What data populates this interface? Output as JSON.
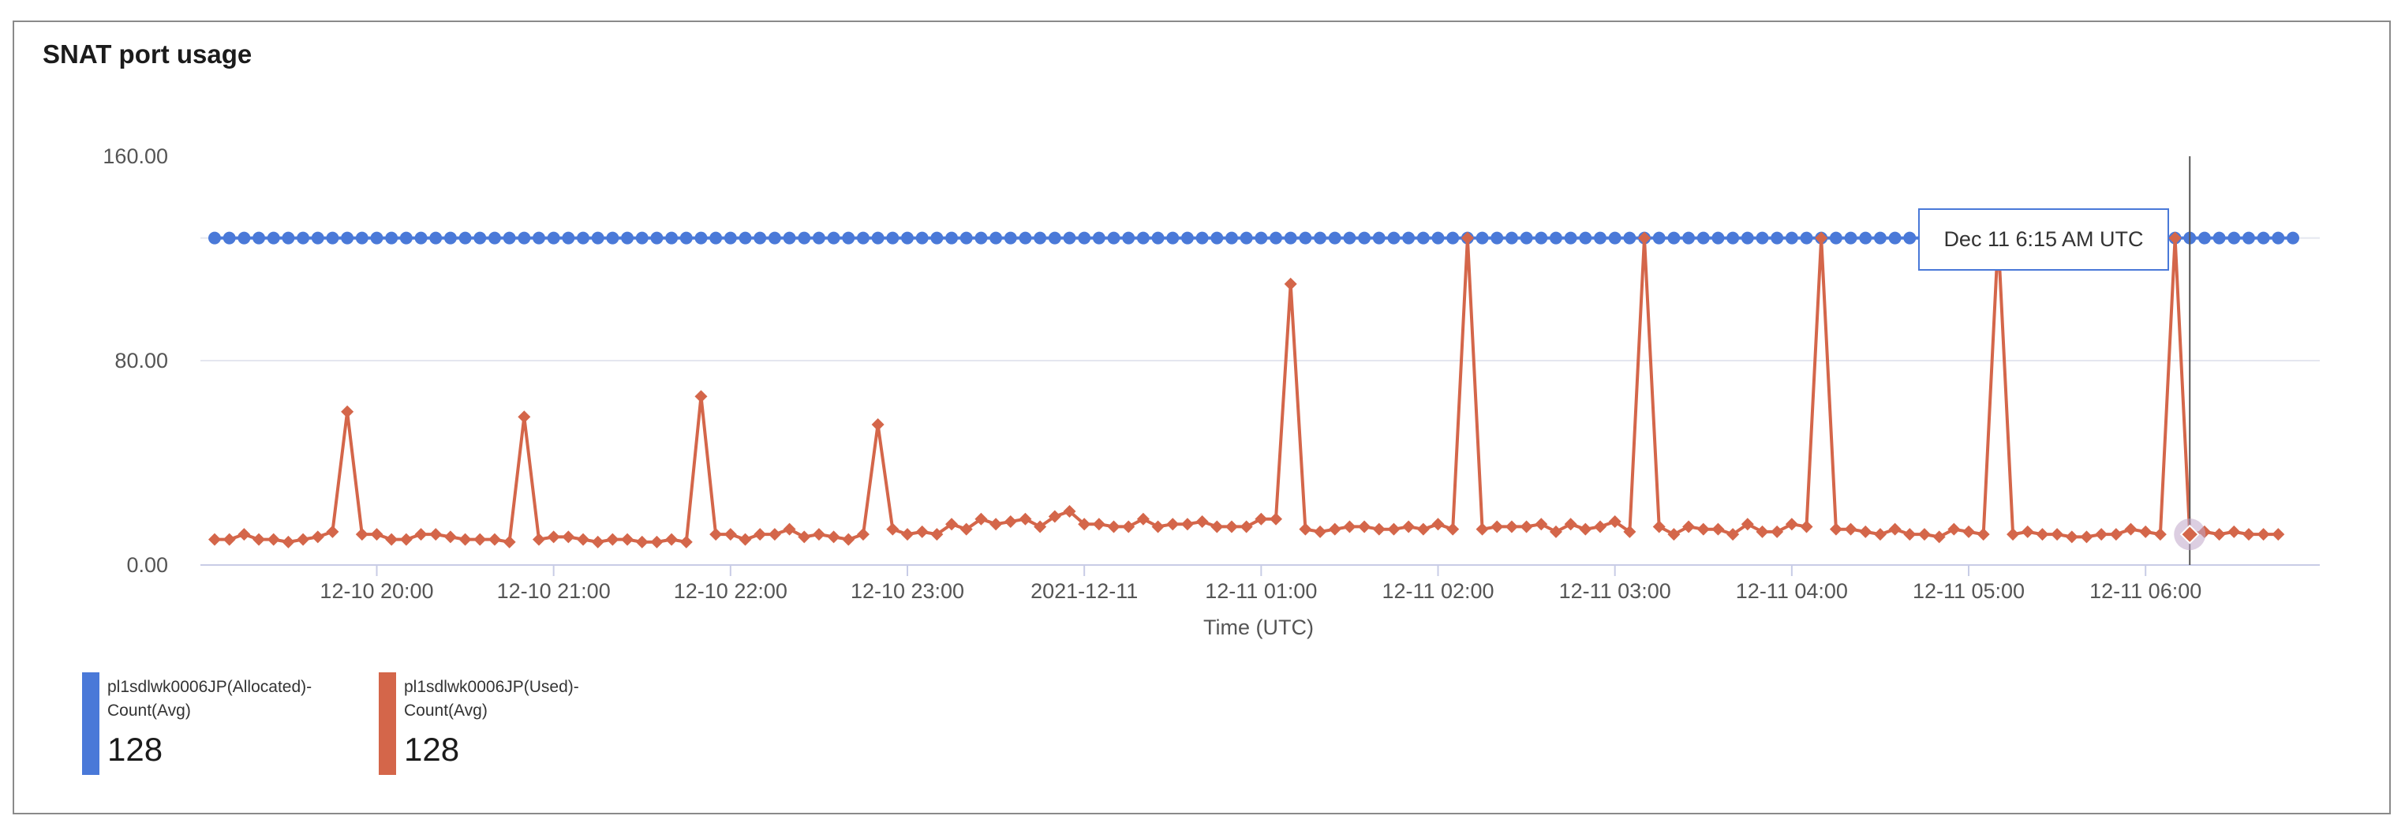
{
  "title": "SNAT port usage",
  "colors": {
    "allocated": "#4a79d8",
    "used": "#d4664a",
    "axis": "#c8cce6",
    "grid": "#e4e6ef",
    "text": "#555555"
  },
  "tooltip": {
    "text": "Dec 11 6:15 AM UTC"
  },
  "legend": [
    {
      "line1": "pl1sdlwk0006JP(Allocated)-",
      "line2": "Count(Avg)",
      "value": "128",
      "color": "#4a79d8"
    },
    {
      "line1": "pl1sdlwk0006JP(Used)-",
      "line2": "Count(Avg)",
      "value": "128",
      "color": "#d4664a"
    }
  ],
  "chart_data": {
    "type": "line",
    "title": "SNAT port usage",
    "xlabel": "Time (UTC)",
    "ylabel": "",
    "ylim": [
      0,
      160
    ],
    "yticks": [
      "0.00",
      "80.00",
      "160.00"
    ],
    "xticks": [
      "12-10 20:00",
      "12-10 21:00",
      "12-10 22:00",
      "12-10 23:00",
      "2021-12-11",
      "12-11 01:00",
      "12-11 02:00",
      "12-11 03:00",
      "12-11 04:00",
      "12-11 05:00",
      "12-11 06:00"
    ],
    "x_range": [
      "2021-12-10 19:05",
      "2021-12-11 06:50"
    ],
    "interval_minutes": 5,
    "hover_time": "2021-12-11 06:15",
    "series": [
      {
        "name": "pl1sdlwk0006JP(Allocated)-Count(Avg)",
        "marker": "circle",
        "values": [
          128,
          128,
          128,
          128,
          128,
          128,
          128,
          128,
          128,
          128,
          128,
          128,
          128,
          128,
          128,
          128,
          128,
          128,
          128,
          128,
          128,
          128,
          128,
          128,
          128,
          128,
          128,
          128,
          128,
          128,
          128,
          128,
          128,
          128,
          128,
          128,
          128,
          128,
          128,
          128,
          128,
          128,
          128,
          128,
          128,
          128,
          128,
          128,
          128,
          128,
          128,
          128,
          128,
          128,
          128,
          128,
          128,
          128,
          128,
          128,
          128,
          128,
          128,
          128,
          128,
          128,
          128,
          128,
          128,
          128,
          128,
          128,
          128,
          128,
          128,
          128,
          128,
          128,
          128,
          128,
          128,
          128,
          128,
          128,
          128,
          128,
          128,
          128,
          128,
          128,
          128,
          128,
          128,
          128,
          128,
          128,
          128,
          128,
          128,
          128,
          128,
          128,
          128,
          128,
          128,
          128,
          128,
          128,
          128,
          128,
          128,
          128,
          128,
          128,
          128,
          128,
          128,
          128,
          128,
          128,
          128,
          128,
          128,
          128,
          128,
          128,
          128,
          128,
          128,
          128,
          128,
          128,
          128,
          128,
          128,
          128,
          128,
          128,
          128,
          128,
          128,
          128
        ]
      },
      {
        "name": "pl1sdlwk0006JP(Used)-Count(Avg)",
        "marker": "diamond",
        "values": [
          10,
          10,
          12,
          10,
          10,
          9,
          10,
          11,
          13,
          60,
          12,
          12,
          10,
          10,
          12,
          12,
          11,
          10,
          10,
          10,
          9,
          58,
          10,
          11,
          11,
          10,
          9,
          10,
          10,
          9,
          9,
          10,
          9,
          66,
          12,
          12,
          10,
          12,
          12,
          14,
          11,
          12,
          11,
          10,
          12,
          55,
          14,
          12,
          13,
          12,
          16,
          14,
          18,
          16,
          17,
          18,
          15,
          19,
          21,
          16,
          16,
          15,
          15,
          18,
          15,
          16,
          16,
          17,
          15,
          15,
          15,
          18,
          18,
          110,
          14,
          13,
          14,
          15,
          15,
          14,
          14,
          15,
          14,
          16,
          14,
          128,
          14,
          15,
          15,
          15,
          16,
          13,
          16,
          14,
          15,
          17,
          13,
          128,
          15,
          12,
          15,
          14,
          14,
          12,
          16,
          13,
          13,
          16,
          15,
          128,
          14,
          14,
          13,
          12,
          14,
          12,
          12,
          11,
          14,
          13,
          12,
          128,
          12,
          13,
          12,
          12,
          11,
          11,
          12,
          12,
          14,
          13,
          12,
          128,
          12,
          13,
          12,
          13,
          12,
          12,
          12
        ]
      }
    ]
  }
}
